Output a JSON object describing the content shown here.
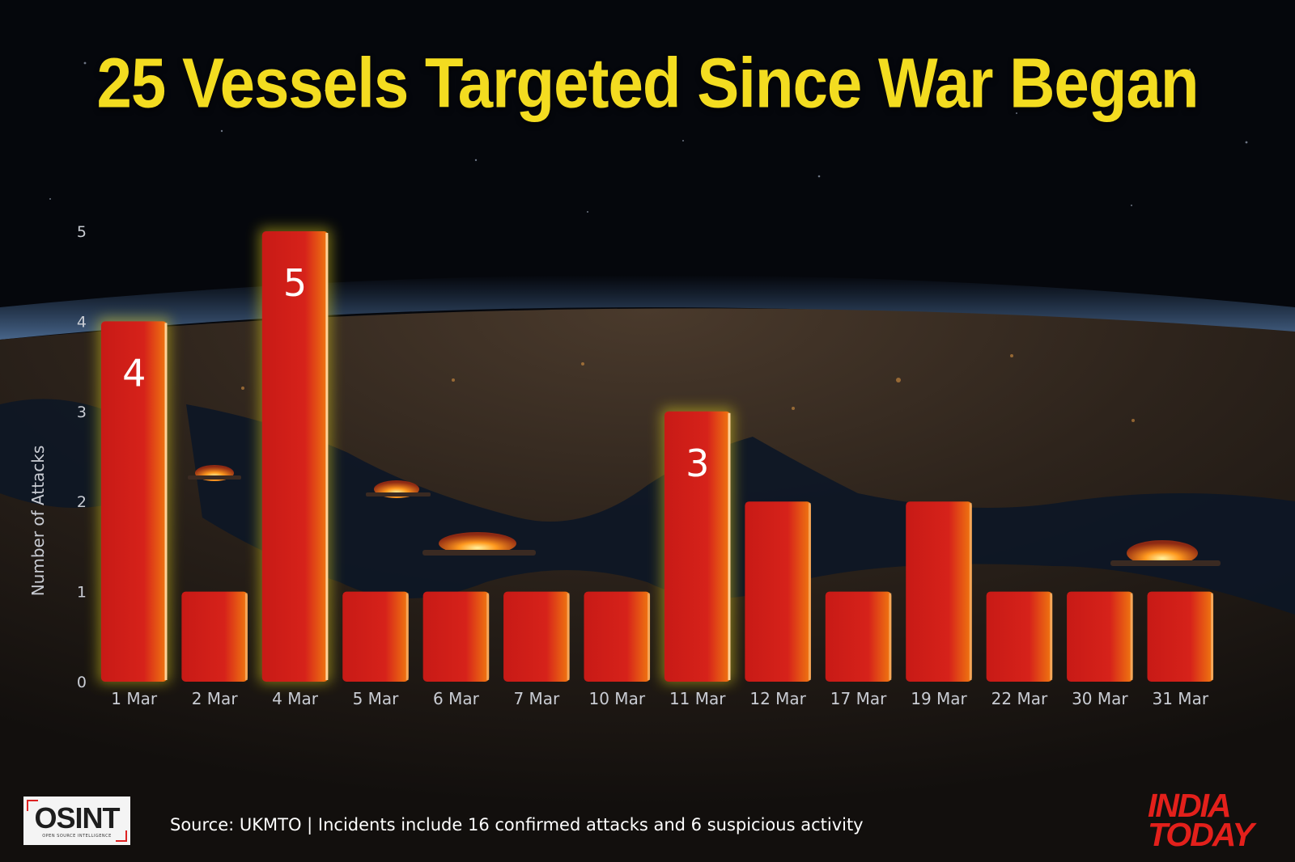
{
  "title": "25 Vessels Targeted Since War Began",
  "source": "Source: UKMTO | Incidents include 16 confirmed attacks and 6 suspicious activity",
  "logos": {
    "left": "OSINT",
    "left_sub": "OPEN SOURCE INTELLIGENCE",
    "right": [
      "INDIA",
      "TODAY"
    ]
  },
  "colors": {
    "title": "#f3dc20",
    "bar": "#d4201a",
    "bar_highlight": "#f07a10",
    "text": "#ffffff",
    "axis_text": "#c9ccd3"
  },
  "chart_data": {
    "type": "bar",
    "title": "25 Vessels Targeted Since War Began",
    "xlabel": "",
    "ylabel": "Number of Attacks",
    "ylim": [
      0,
      5
    ],
    "yticks": [
      0,
      1,
      2,
      3,
      4,
      5
    ],
    "grid": false,
    "categories": [
      "1 Mar",
      "2 Mar",
      "4 Mar",
      "5 Mar",
      "6 Mar",
      "7 Mar",
      "10 Mar",
      "11 Mar",
      "12 Mar",
      "17 Mar",
      "19 Mar",
      "22 Mar",
      "30 Mar",
      "31 Mar"
    ],
    "values": [
      4,
      1,
      5,
      1,
      1,
      1,
      1,
      3,
      2,
      1,
      2,
      1,
      1,
      1
    ],
    "data_labels": {
      "1 Mar": "4",
      "4 Mar": "5",
      "11 Mar": "3"
    }
  }
}
